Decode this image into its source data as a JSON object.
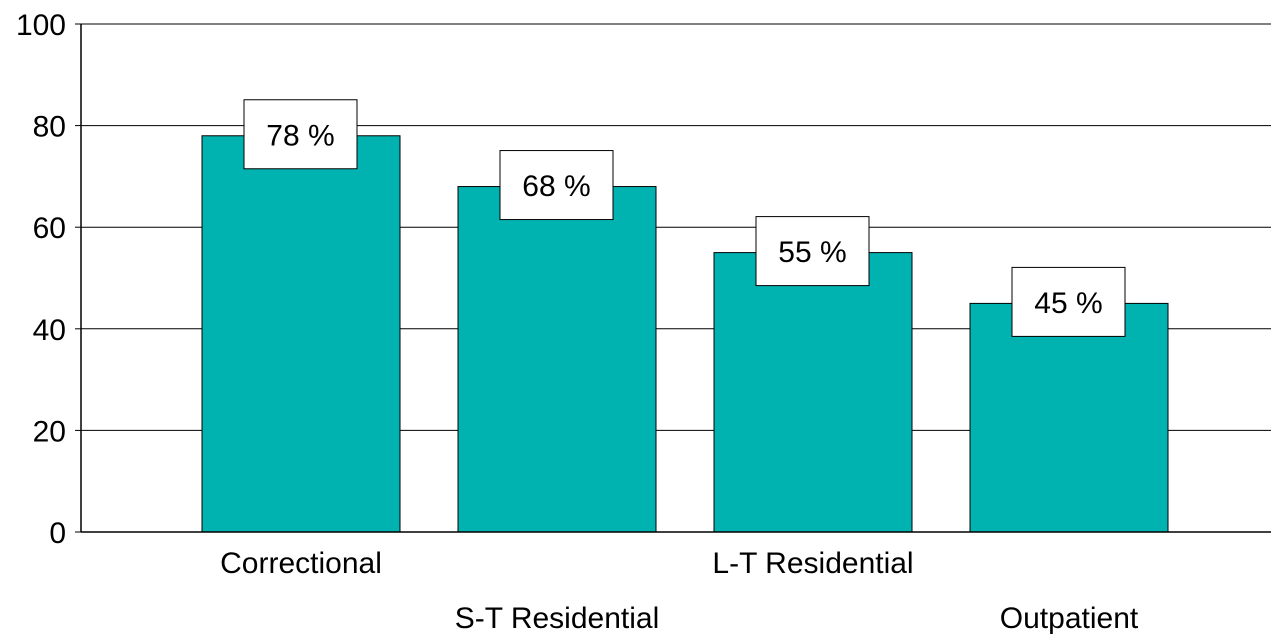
{
  "chart_data": {
    "type": "bar",
    "title": "",
    "xlabel": "",
    "ylabel": "",
    "categories": [
      "Correctional",
      "S-T Residential",
      "L-T Residential",
      "Outpatient"
    ],
    "values": [
      78,
      68,
      55,
      45
    ],
    "data_labels": [
      "78 %",
      "68 %",
      "55 %",
      "45 %"
    ],
    "ylim": [
      0,
      100
    ],
    "yticks": [
      0,
      20,
      40,
      60,
      80,
      100
    ],
    "ytick_labels": [
      "0",
      "20",
      "40",
      "60",
      "80",
      "100"
    ],
    "grid": "horizontal",
    "legend": "none",
    "bar_color": "#00b2b0",
    "category_label_rows": [
      0,
      1,
      0,
      1
    ]
  }
}
